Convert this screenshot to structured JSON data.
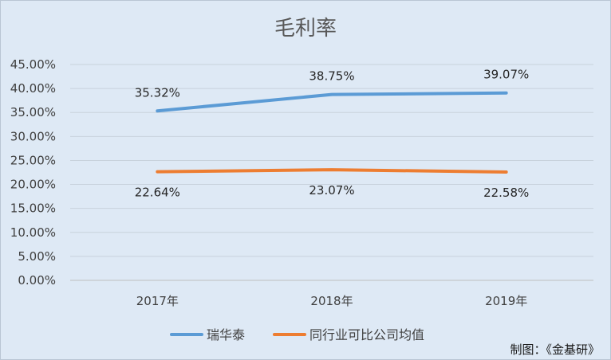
{
  "chart_data": {
    "type": "line",
    "title": "毛利率",
    "categories": [
      "2017年",
      "2018年",
      "2019年"
    ],
    "series": [
      {
        "name": "瑞华泰",
        "values": [
          35.32,
          38.75,
          39.07
        ],
        "labels": [
          "35.32%",
          "38.75%",
          "39.07%"
        ],
        "color": "#5b9bd5"
      },
      {
        "name": "同行业可比公司均值",
        "values": [
          22.64,
          23.07,
          22.58
        ],
        "labels": [
          "22.64%",
          "23.07%",
          "22.58%"
        ],
        "color": "#ed7d31"
      }
    ],
    "ylim": [
      0,
      45
    ],
    "yticks": [
      "0.00%",
      "5.00%",
      "10.00%",
      "15.00%",
      "20.00%",
      "25.00%",
      "30.00%",
      "35.00%",
      "40.00%",
      "45.00%"
    ],
    "grid": true,
    "legend_position": "bottom"
  },
  "credit": "制图：《金基研》"
}
